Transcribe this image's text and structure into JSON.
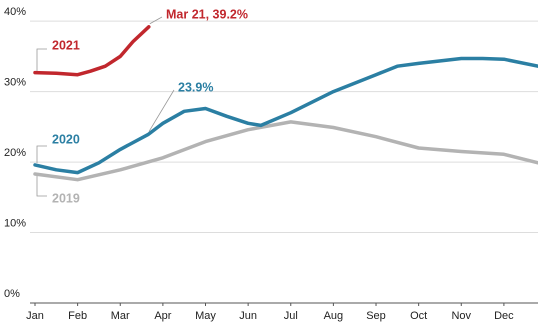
{
  "chart_data": {
    "type": "line",
    "annotations": [
      {
        "text": "Mar 21, 39.2%",
        "series": 2,
        "point": 7
      },
      {
        "text": "23.9%",
        "series": 1,
        "point": 5
      }
    ],
    "series": [
      {
        "name": "2019",
        "color": "#b3b3b3",
        "x": [
          0,
          1,
          2,
          3,
          4,
          5,
          6,
          7,
          8,
          9,
          10,
          11,
          11.8
        ],
        "values": [
          18.3,
          17.5,
          18.9,
          20.6,
          22.9,
          24.6,
          25.7,
          24.9,
          23.6,
          22.0,
          21.5,
          21.1,
          19.9
        ]
      },
      {
        "name": "2020",
        "color": "#2b7fa3",
        "x": [
          0,
          0.5,
          1,
          1.5,
          2,
          2.65,
          3,
          3.5,
          4,
          4.5,
          5,
          5.3,
          6,
          7,
          8,
          8.5,
          9,
          10,
          10.5,
          11,
          11.8
        ],
        "values": [
          19.6,
          18.9,
          18.5,
          19.9,
          21.8,
          23.9,
          25.5,
          27.2,
          27.6,
          26.5,
          25.5,
          25.2,
          27.0,
          30.0,
          32.4,
          33.6,
          34.0,
          34.7,
          34.7,
          34.6,
          33.6
        ]
      },
      {
        "name": "2021",
        "color": "#c1272d",
        "x": [
          0,
          0.5,
          1,
          1.3,
          1.65,
          2,
          2.3,
          2.67
        ],
        "values": [
          32.7,
          32.6,
          32.4,
          32.9,
          33.6,
          35.0,
          37.1,
          39.2
        ]
      }
    ],
    "xlim": [
      0,
      11.8
    ],
    "xticks": [
      {
        "value": 0,
        "label": "Jan"
      },
      {
        "value": 1,
        "label": "Feb"
      },
      {
        "value": 2,
        "label": "Mar"
      },
      {
        "value": 3,
        "label": "Apr"
      },
      {
        "value": 4,
        "label": "May"
      },
      {
        "value": 5,
        "label": "Jun"
      },
      {
        "value": 6,
        "label": "Jul"
      },
      {
        "value": 7,
        "label": "Aug"
      },
      {
        "value": 8,
        "label": "Sep"
      },
      {
        "value": 9,
        "label": "Oct"
      },
      {
        "value": 10,
        "label": "Nov"
      },
      {
        "value": 11,
        "label": "Dec"
      }
    ],
    "ylim": [
      0,
      43
    ],
    "yticks": [
      {
        "value": 0,
        "label": "0%"
      },
      {
        "value": 10,
        "label": "10%"
      },
      {
        "value": 20,
        "label": "20%"
      },
      {
        "value": 30,
        "label": "30%"
      },
      {
        "value": 40,
        "label": "40%"
      }
    ],
    "grid": true
  }
}
